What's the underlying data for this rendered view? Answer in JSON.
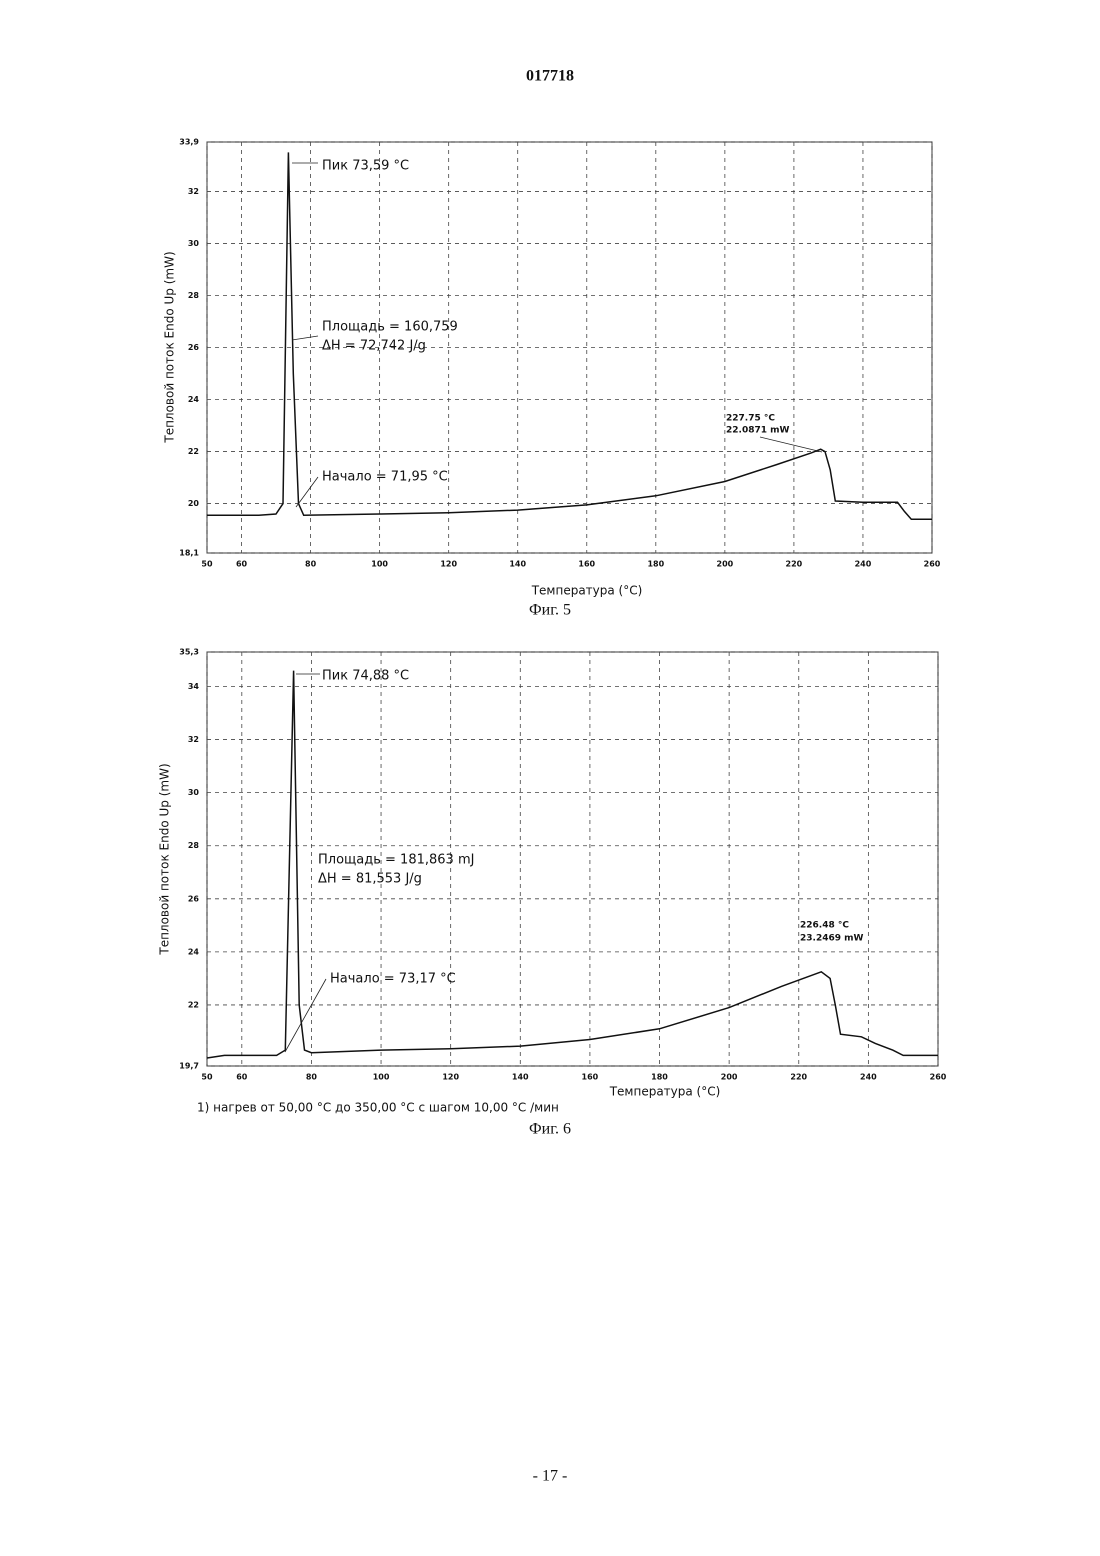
{
  "header": "017718",
  "footer": "- 17 -",
  "chart_data": [
    {
      "type": "line",
      "caption": "Фиг. 5",
      "xlabel": "Температура (°C)",
      "ylabel": "Тепловой поток Endo Up (mW)",
      "xlim": [
        50,
        260
      ],
      "ylim": [
        18.1,
        33.9
      ],
      "xticks": [
        50,
        60,
        80,
        100,
        120,
        140,
        160,
        180,
        200,
        220,
        240,
        260
      ],
      "yticks": [
        {
          "value": 18.1,
          "label": "18,1"
        },
        20,
        22,
        24,
        26,
        28,
        30,
        32,
        {
          "value": 33.9,
          "label": "33,9"
        }
      ],
      "grid": true,
      "annotations": [
        "Пик 73,59 °C",
        "Площадь = 160,759",
        "ΔH = 72,742 J/g",
        "Начало = 71,95 °C",
        "227.75 °C",
        "22.0871 mW"
      ],
      "series": [
        {
          "color": "#111111",
          "x": [
            50,
            65,
            70,
            72,
            73.59,
            75,
            76.5,
            78,
            100,
            120,
            140,
            160,
            180,
            200,
            215,
            225,
            227.75,
            229,
            230.5,
            232,
            240,
            250,
            252,
            254,
            260
          ],
          "values": [
            19.55,
            19.55,
            19.6,
            20,
            33.5,
            25,
            20,
            19.55,
            19.6,
            19.65,
            19.75,
            19.95,
            20.3,
            20.85,
            21.5,
            21.95,
            22.09,
            22.0,
            21.3,
            20.1,
            20.05,
            20.05,
            19.7,
            19.4,
            19.4
          ]
        }
      ]
    },
    {
      "type": "line",
      "caption": "Фиг. 6",
      "xlabel": "Температура (°C)",
      "ylabel": "Тепловой поток Endo Up (mW)",
      "xlim": [
        50,
        260
      ],
      "ylim": [
        19.7,
        35.3
      ],
      "xticks": [
        50,
        60,
        80,
        100,
        120,
        140,
        160,
        180,
        200,
        220,
        240,
        260
      ],
      "yticks": [
        {
          "value": 19.7,
          "label": "19,7"
        },
        22,
        24,
        26,
        28,
        30,
        32,
        34,
        {
          "value": 35.3,
          "label": "35,3"
        }
      ],
      "grid": true,
      "annotations": [
        "Пик 74,88 °C",
        "Площадь = 181,863 mJ",
        "ΔH = 81,553 J/g",
        "Начало = 73,17 °C",
        "226.48 °C",
        "23.2469 mW"
      ],
      "note": "1) нагрев от 50,00 °C до 350,00 °C с шагом 10,00 °C /мин",
      "series": [
        {
          "color": "#111111",
          "x": [
            50,
            55,
            70,
            72.5,
            74.88,
            76.5,
            78,
            80,
            100,
            120,
            140,
            160,
            180,
            200,
            215,
            226.48,
            229,
            230.5,
            232,
            238,
            242,
            247,
            250,
            260
          ],
          "values": [
            20.0,
            20.1,
            20.1,
            20.3,
            34.6,
            22,
            20.3,
            20.2,
            20.3,
            20.35,
            20.45,
            20.7,
            21.1,
            21.9,
            22.7,
            23.25,
            23.0,
            22.0,
            20.9,
            20.8,
            20.55,
            20.3,
            20.1,
            20.1
          ]
        }
      ]
    }
  ]
}
